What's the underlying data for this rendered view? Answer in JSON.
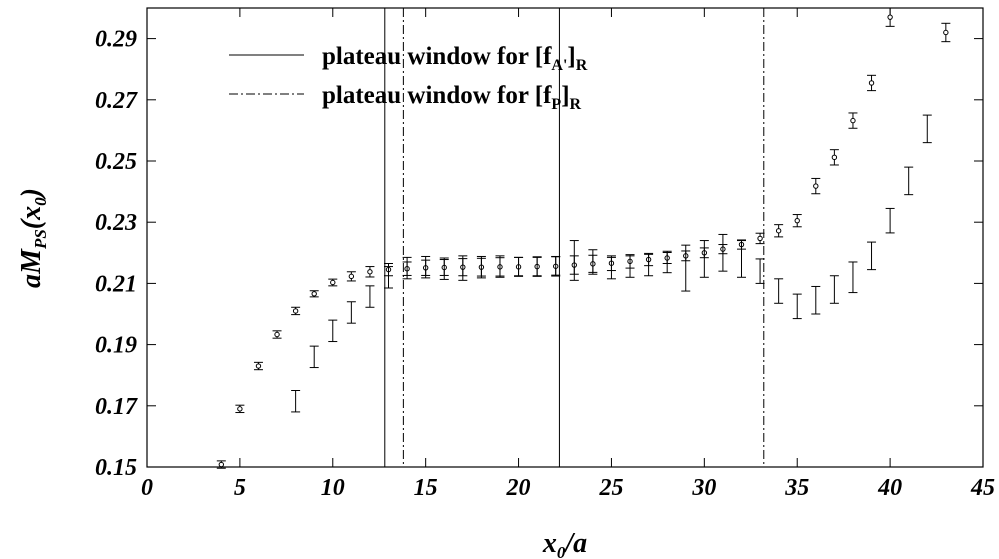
{
  "chart_data": {
    "type": "scatter",
    "title": "",
    "xlabel": {
      "base": "x",
      "sub": "0",
      "tail": "/a"
    },
    "ylabel": {
      "prefix": "aM",
      "sub": "PS",
      "paren_open": "(x",
      "paren_sub": "0",
      "paren_close": ")"
    },
    "xlim": [
      0,
      45
    ],
    "ylim": [
      0.15,
      0.3
    ],
    "xticks": [
      0,
      5,
      10,
      15,
      20,
      25,
      30,
      35,
      40,
      45
    ],
    "xtick_labels": [
      "0",
      "5",
      "10",
      "15",
      "20",
      "25",
      "30",
      "35",
      "40",
      "45"
    ],
    "yticks": [
      0.15,
      0.17,
      0.19,
      0.21,
      0.23,
      0.25,
      0.27,
      0.29
    ],
    "ytick_labels": [
      "0.15",
      "0.17",
      "0.19",
      "0.21",
      "0.23",
      "0.25",
      "0.27",
      "0.29"
    ],
    "grid": false,
    "legend_position": "top-left",
    "legend": [
      {
        "style": "solid",
        "text": "plateau window for [f",
        "sub": "A'",
        "close": "]",
        "tail_sub": "R"
      },
      {
        "style": "dashdot",
        "text": "plateau window for [f",
        "sub": "P",
        "close": "]",
        "tail_sub": "R"
      }
    ],
    "vlines": [
      {
        "x": 12.8,
        "style": "solid"
      },
      {
        "x": 22.2,
        "style": "solid"
      },
      {
        "x": 13.8,
        "style": "dashdot"
      },
      {
        "x": 33.2,
        "style": "dashdot"
      }
    ],
    "series": [
      {
        "marker": "circle",
        "points": [
          {
            "x": 4,
            "y": 0.1508,
            "err": 0.0012
          },
          {
            "x": 5,
            "y": 0.169,
            "err": 0.0012
          },
          {
            "x": 6,
            "y": 0.183,
            "err": 0.0012
          },
          {
            "x": 7,
            "y": 0.1933,
            "err": 0.0012
          },
          {
            "x": 8,
            "y": 0.201,
            "err": 0.0012
          },
          {
            "x": 9,
            "y": 0.2066,
            "err": 0.001
          },
          {
            "x": 10,
            "y": 0.2103,
            "err": 0.0011
          },
          {
            "x": 11,
            "y": 0.2123,
            "err": 0.0015
          },
          {
            "x": 12,
            "y": 0.2138,
            "err": 0.0017
          },
          {
            "x": 13,
            "y": 0.2145,
            "err": 0.002
          },
          {
            "x": 14,
            "y": 0.2148,
            "err": 0.0022
          },
          {
            "x": 15,
            "y": 0.2151,
            "err": 0.0025
          },
          {
            "x": 16,
            "y": 0.2152,
            "err": 0.0026
          },
          {
            "x": 17,
            "y": 0.2153,
            "err": 0.0028
          },
          {
            "x": 18,
            "y": 0.2153,
            "err": 0.0029
          },
          {
            "x": 19,
            "y": 0.2154,
            "err": 0.003
          },
          {
            "x": 20,
            "y": 0.2154,
            "err": 0.0031
          },
          {
            "x": 21,
            "y": 0.2155,
            "err": 0.0032
          },
          {
            "x": 22,
            "y": 0.2156,
            "err": 0.0032
          },
          {
            "x": 23,
            "y": 0.216,
            "err": 0.003
          },
          {
            "x": 24,
            "y": 0.2164,
            "err": 0.0028
          },
          {
            "x": 25,
            "y": 0.2166,
            "err": 0.0024
          },
          {
            "x": 26,
            "y": 0.2172,
            "err": 0.0022
          },
          {
            "x": 27,
            "y": 0.2178,
            "err": 0.002
          },
          {
            "x": 28,
            "y": 0.2183,
            "err": 0.0018
          },
          {
            "x": 29,
            "y": 0.219,
            "err": 0.0016
          },
          {
            "x": 30,
            "y": 0.22,
            "err": 0.0016
          },
          {
            "x": 31,
            "y": 0.2212,
            "err": 0.0015
          },
          {
            "x": 32,
            "y": 0.2227,
            "err": 0.0015
          },
          {
            "x": 33,
            "y": 0.2247,
            "err": 0.0017
          },
          {
            "x": 34,
            "y": 0.2272,
            "err": 0.002
          },
          {
            "x": 35,
            "y": 0.2305,
            "err": 0.002
          },
          {
            "x": 36,
            "y": 0.2418,
            "err": 0.0025
          },
          {
            "x": 37,
            "y": 0.2512,
            "err": 0.0025
          },
          {
            "x": 38,
            "y": 0.2632,
            "err": 0.0025
          },
          {
            "x": 39,
            "y": 0.2755,
            "err": 0.0025
          },
          {
            "x": 40,
            "y": 0.297,
            "err": 0.003
          },
          {
            "x": 43,
            "y": 0.292,
            "err": 0.003
          }
        ]
      },
      {
        "marker": "none",
        "points": [
          {
            "x": 8,
            "y": 0.1715,
            "err": 0.0035
          },
          {
            "x": 9,
            "y": 0.186,
            "err": 0.0035
          },
          {
            "x": 10,
            "y": 0.1945,
            "err": 0.0035
          },
          {
            "x": 11,
            "y": 0.2005,
            "err": 0.0035
          },
          {
            "x": 12,
            "y": 0.2057,
            "err": 0.0035
          },
          {
            "x": 13,
            "y": 0.212,
            "err": 0.0035
          },
          {
            "x": 14,
            "y": 0.215,
            "err": 0.0035
          },
          {
            "x": 15,
            "y": 0.2153,
            "err": 0.0035
          },
          {
            "x": 16,
            "y": 0.2148,
            "err": 0.0035
          },
          {
            "x": 17,
            "y": 0.215,
            "err": 0.004
          },
          {
            "x": 18,
            "y": 0.2153,
            "err": 0.0035
          },
          {
            "x": 19,
            "y": 0.2155,
            "err": 0.0035
          },
          {
            "x": 20,
            "y": 0.2155,
            "err": 0.003
          },
          {
            "x": 21,
            "y": 0.2155,
            "err": 0.003
          },
          {
            "x": 22,
            "y": 0.2157,
            "err": 0.003
          },
          {
            "x": 23,
            "y": 0.2175,
            "err": 0.0065
          },
          {
            "x": 24,
            "y": 0.217,
            "err": 0.004
          },
          {
            "x": 25,
            "y": 0.215,
            "err": 0.0035
          },
          {
            "x": 26,
            "y": 0.2155,
            "err": 0.0035
          },
          {
            "x": 27,
            "y": 0.216,
            "err": 0.0035
          },
          {
            "x": 28,
            "y": 0.217,
            "err": 0.0035
          },
          {
            "x": 29,
            "y": 0.215,
            "err": 0.0075
          },
          {
            "x": 30,
            "y": 0.218,
            "err": 0.006
          },
          {
            "x": 31,
            "y": 0.22,
            "err": 0.006
          },
          {
            "x": 32,
            "y": 0.218,
            "err": 0.006
          },
          {
            "x": 33,
            "y": 0.214,
            "err": 0.004
          },
          {
            "x": 34,
            "y": 0.2075,
            "err": 0.004
          },
          {
            "x": 35,
            "y": 0.2025,
            "err": 0.004
          },
          {
            "x": 36,
            "y": 0.2045,
            "err": 0.0045
          },
          {
            "x": 37,
            "y": 0.208,
            "err": 0.0045
          },
          {
            "x": 38,
            "y": 0.212,
            "err": 0.005
          },
          {
            "x": 39,
            "y": 0.219,
            "err": 0.0045
          },
          {
            "x": 40,
            "y": 0.2305,
            "err": 0.004
          },
          {
            "x": 41,
            "y": 0.2435,
            "err": 0.0045
          },
          {
            "x": 42,
            "y": 0.2605,
            "err": 0.0045
          }
        ]
      }
    ]
  }
}
